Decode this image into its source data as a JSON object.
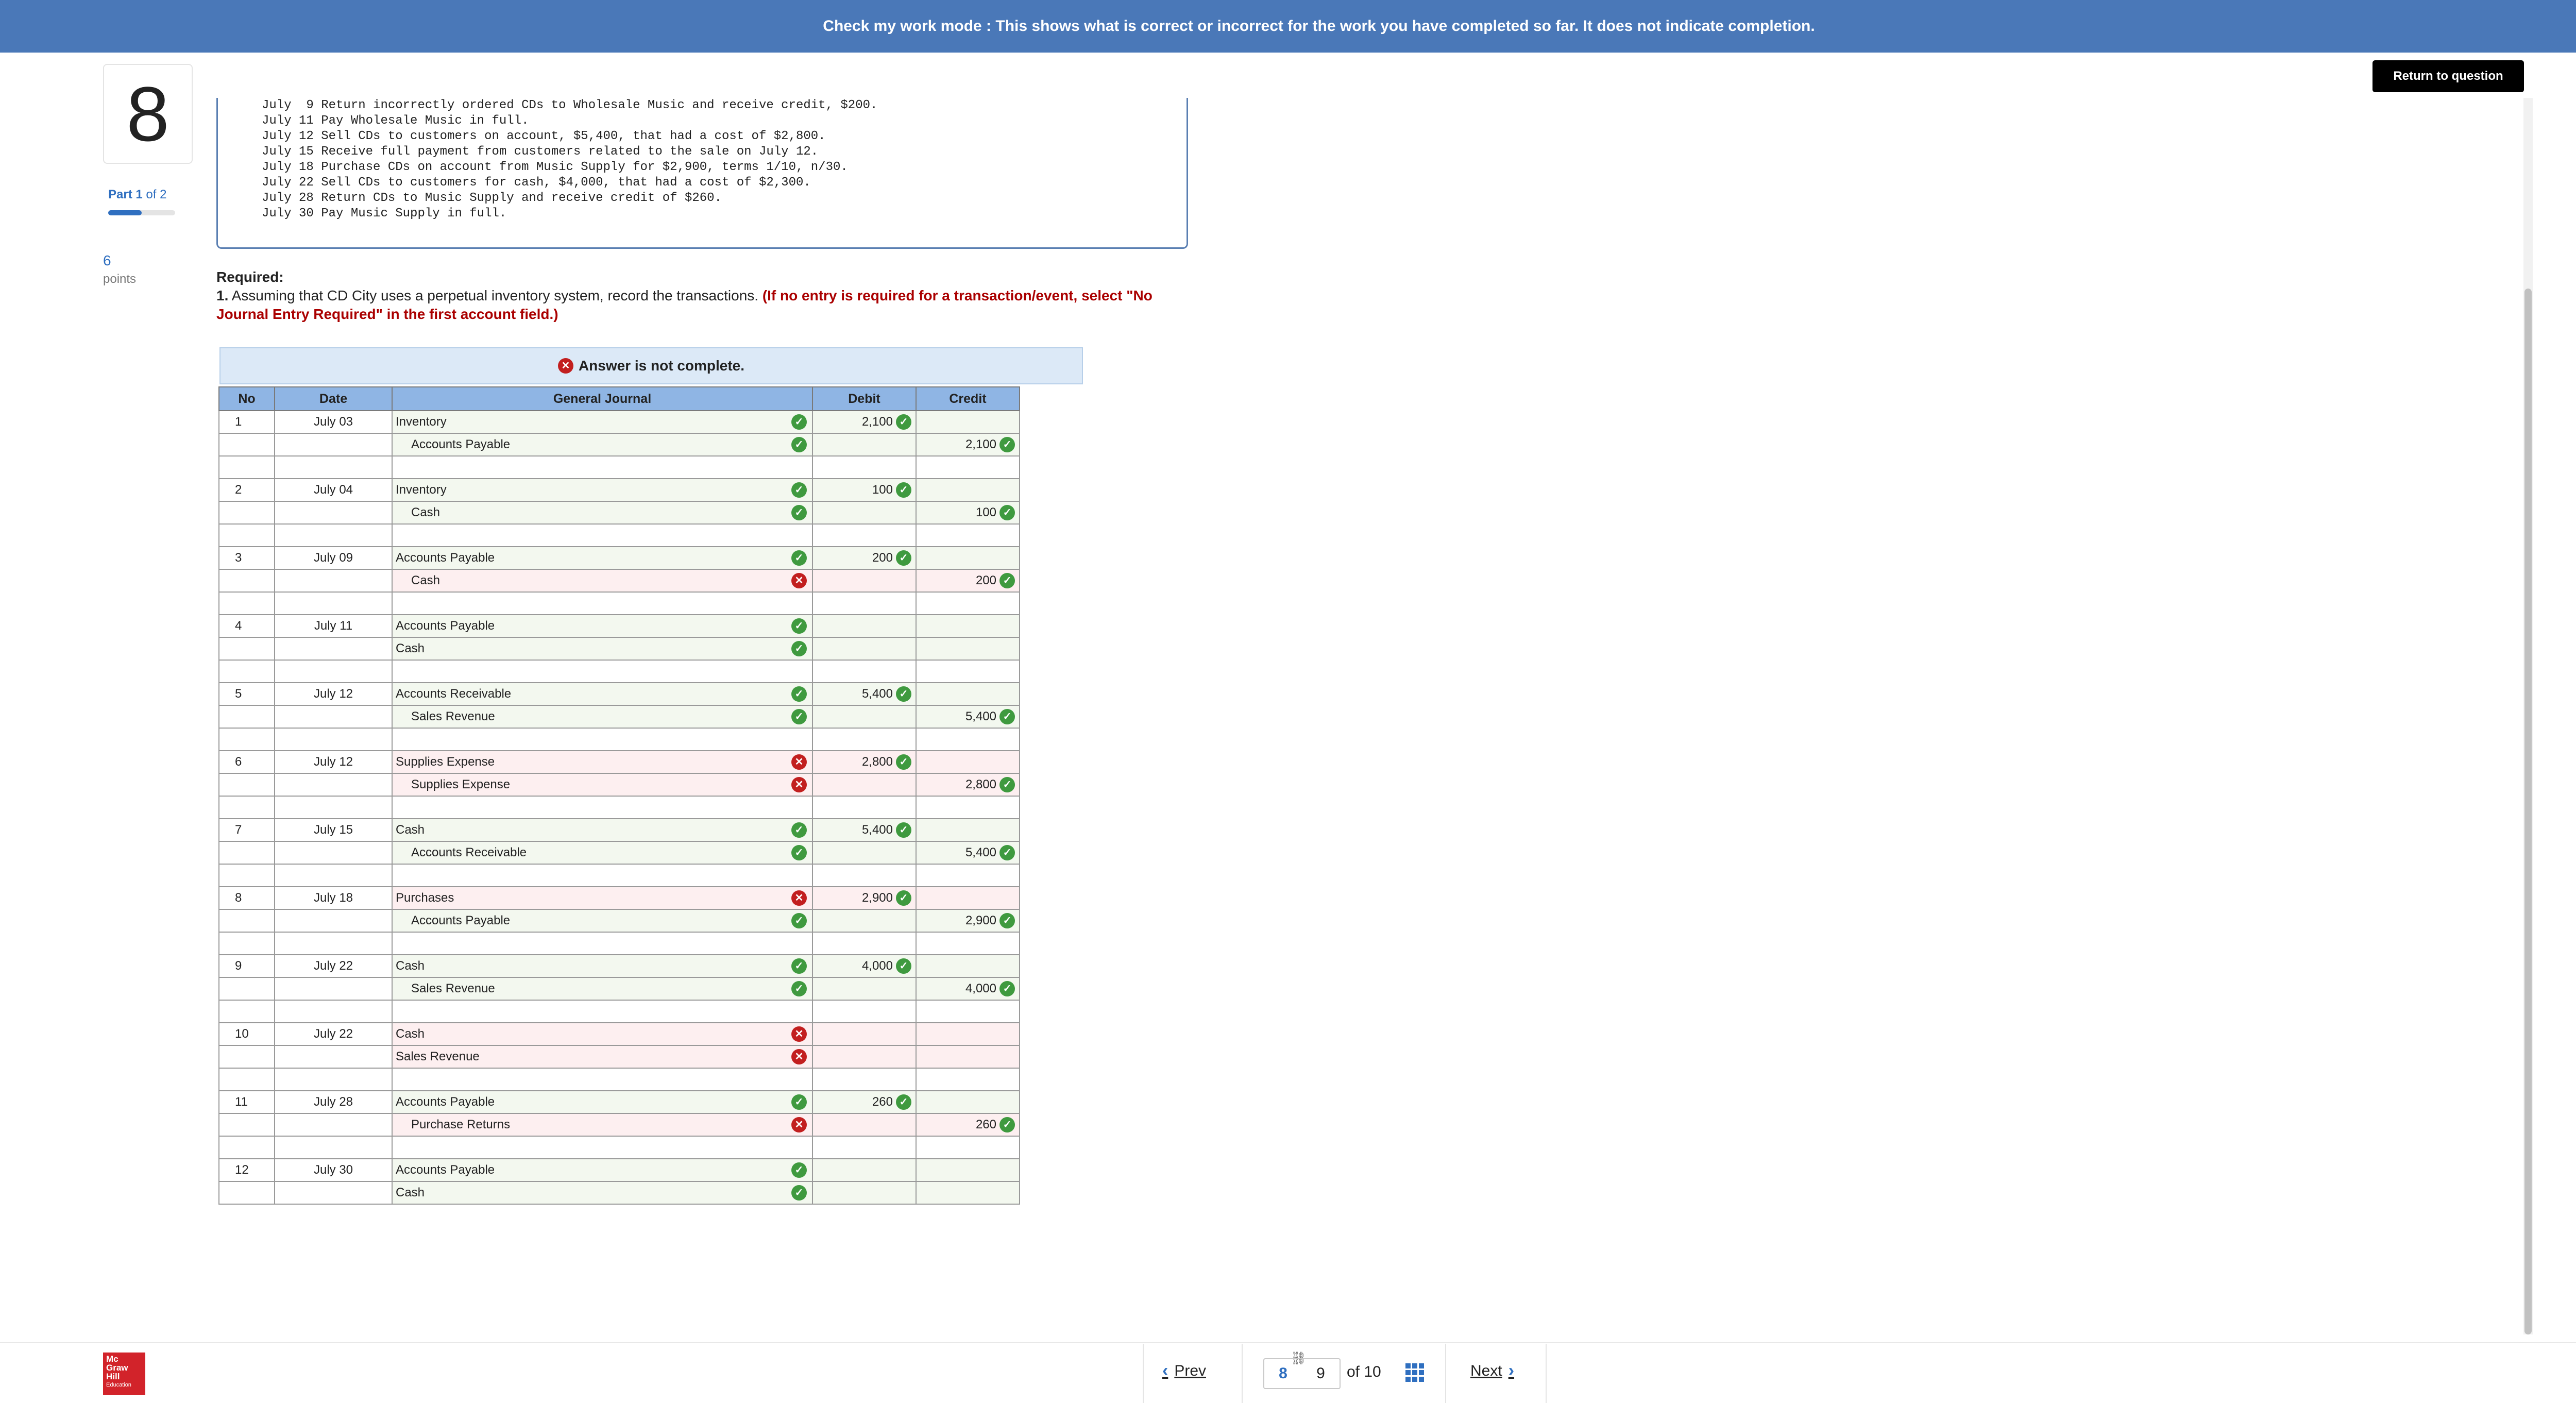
{
  "banner": {
    "text": "Check my work mode : This shows what is correct or incorrect for the work you have completed so far. It does not indicate completion."
  },
  "return_button": "Return to question",
  "question": {
    "number": "8",
    "part_prefix": "Part",
    "part_current": "1",
    "part_of": "of",
    "part_total": "2",
    "part_progress": 0.5,
    "points": "6",
    "points_label": "points"
  },
  "transactions": [
    "July  9 Return incorrectly ordered CDs to Wholesale Music and receive credit, $200.",
    "July 11 Pay Wholesale Music in full.",
    "July 12 Sell CDs to customers on account, $5,400, that had a cost of $2,800.",
    "July 15 Receive full payment from customers related to the sale on July 12.",
    "July 18 Purchase CDs on account from Music Supply for $2,900, terms 1/10, n/30.",
    "July 22 Sell CDs to customers for cash, $4,000, that had a cost of $2,300.",
    "July 28 Return CDs to Music Supply and receive credit of $260.",
    "July 30 Pay Music Supply in full."
  ],
  "required": {
    "title": "Required:",
    "number": "1.",
    "text": "Assuming that CD City uses a perpetual inventory system, record the transactions.",
    "red_text": "(If no entry is required for a transaction/event, select \"No Journal Entry Required\" in the first account field.)"
  },
  "notice": "Answer is not complete.",
  "table": {
    "headers": {
      "no": "No",
      "date": "Date",
      "journal": "General Journal",
      "debit": "Debit",
      "credit": "Credit"
    },
    "entries": [
      {
        "no": "1",
        "date": "July 03",
        "lines": [
          {
            "account": "Inventory",
            "indent": false,
            "status": "ok",
            "debit": "2,100",
            "debit_status": "ok",
            "credit": "",
            "credit_status": ""
          },
          {
            "account": "Accounts Payable",
            "indent": true,
            "status": "ok",
            "debit": "",
            "debit_status": "",
            "credit": "2,100",
            "credit_status": "ok"
          }
        ]
      },
      {
        "no": "2",
        "date": "July 04",
        "lines": [
          {
            "account": "Inventory",
            "indent": false,
            "status": "ok",
            "debit": "100",
            "debit_status": "ok",
            "credit": "",
            "credit_status": ""
          },
          {
            "account": "Cash",
            "indent": true,
            "status": "ok",
            "debit": "",
            "debit_status": "",
            "credit": "100",
            "credit_status": "ok"
          }
        ]
      },
      {
        "no": "3",
        "date": "July 09",
        "lines": [
          {
            "account": "Accounts Payable",
            "indent": false,
            "status": "ok",
            "debit": "200",
            "debit_status": "ok",
            "credit": "",
            "credit_status": ""
          },
          {
            "account": "Cash",
            "indent": true,
            "status": "bad",
            "debit": "",
            "debit_status": "",
            "credit": "200",
            "credit_status": "ok"
          }
        ]
      },
      {
        "no": "4",
        "date": "July 11",
        "lines": [
          {
            "account": "Accounts Payable",
            "indent": false,
            "status": "ok",
            "debit": "",
            "debit_status": "",
            "credit": "",
            "credit_status": ""
          },
          {
            "account": "Cash",
            "indent": false,
            "status": "ok",
            "debit": "",
            "debit_status": "",
            "credit": "",
            "credit_status": ""
          }
        ]
      },
      {
        "no": "5",
        "date": "July 12",
        "lines": [
          {
            "account": "Accounts Receivable",
            "indent": false,
            "status": "ok",
            "debit": "5,400",
            "debit_status": "ok",
            "credit": "",
            "credit_status": ""
          },
          {
            "account": "Sales Revenue",
            "indent": true,
            "status": "ok",
            "debit": "",
            "debit_status": "",
            "credit": "5,400",
            "credit_status": "ok"
          }
        ]
      },
      {
        "no": "6",
        "date": "July 12",
        "lines": [
          {
            "account": "Supplies Expense",
            "indent": false,
            "status": "bad",
            "debit": "2,800",
            "debit_status": "ok",
            "credit": "",
            "credit_status": ""
          },
          {
            "account": "Supplies Expense",
            "indent": true,
            "status": "bad",
            "debit": "",
            "debit_status": "",
            "credit": "2,800",
            "credit_status": "ok"
          }
        ]
      },
      {
        "no": "7",
        "date": "July 15",
        "lines": [
          {
            "account": "Cash",
            "indent": false,
            "status": "ok",
            "debit": "5,400",
            "debit_status": "ok",
            "credit": "",
            "credit_status": ""
          },
          {
            "account": "Accounts Receivable",
            "indent": true,
            "status": "ok",
            "debit": "",
            "debit_status": "",
            "credit": "5,400",
            "credit_status": "ok"
          }
        ]
      },
      {
        "no": "8",
        "date": "July 18",
        "lines": [
          {
            "account": "Purchases",
            "indent": false,
            "status": "bad",
            "debit": "2,900",
            "debit_status": "ok",
            "credit": "",
            "credit_status": ""
          },
          {
            "account": "Accounts Payable",
            "indent": true,
            "status": "ok",
            "debit": "",
            "debit_status": "",
            "credit": "2,900",
            "credit_status": "ok"
          }
        ]
      },
      {
        "no": "9",
        "date": "July 22",
        "lines": [
          {
            "account": "Cash",
            "indent": false,
            "status": "ok",
            "debit": "4,000",
            "debit_status": "ok",
            "credit": "",
            "credit_status": ""
          },
          {
            "account": "Sales Revenue",
            "indent": true,
            "status": "ok",
            "debit": "",
            "debit_status": "",
            "credit": "4,000",
            "credit_status": "ok"
          }
        ]
      },
      {
        "no": "10",
        "date": "July 22",
        "lines": [
          {
            "account": "Cash",
            "indent": false,
            "status": "bad",
            "debit": "",
            "debit_status": "",
            "credit": "",
            "credit_status": ""
          },
          {
            "account": "Sales Revenue",
            "indent": false,
            "status": "bad",
            "debit": "",
            "debit_status": "",
            "credit": "",
            "credit_status": ""
          }
        ]
      },
      {
        "no": "11",
        "date": "July 28",
        "lines": [
          {
            "account": "Accounts Payable",
            "indent": false,
            "status": "ok",
            "debit": "260",
            "debit_status": "ok",
            "credit": "",
            "credit_status": ""
          },
          {
            "account": "Purchase Returns",
            "indent": true,
            "status": "bad",
            "debit": "",
            "debit_status": "",
            "credit": "260",
            "credit_status": "ok"
          }
        ]
      },
      {
        "no": "12",
        "date": "July 30",
        "lines": [
          {
            "account": "Accounts Payable",
            "indent": false,
            "status": "ok",
            "debit": "",
            "debit_status": "",
            "credit": "",
            "credit_status": ""
          },
          {
            "account": "Cash",
            "indent": false,
            "status": "ok",
            "debit": "",
            "debit_status": "",
            "credit": "",
            "credit_status": ""
          }
        ]
      }
    ]
  },
  "footer": {
    "logo_lines": [
      "Mc",
      "Graw",
      "Hill",
      "Education"
    ],
    "prev": "Prev",
    "next": "Next",
    "page_current": "8",
    "page_next": "9",
    "of_text": "of 10"
  },
  "colors": {
    "banner": "#4a78b8",
    "accent": "#2f6fc0",
    "correct": "#3f9a3f",
    "incorrect": "#c21f1f"
  }
}
